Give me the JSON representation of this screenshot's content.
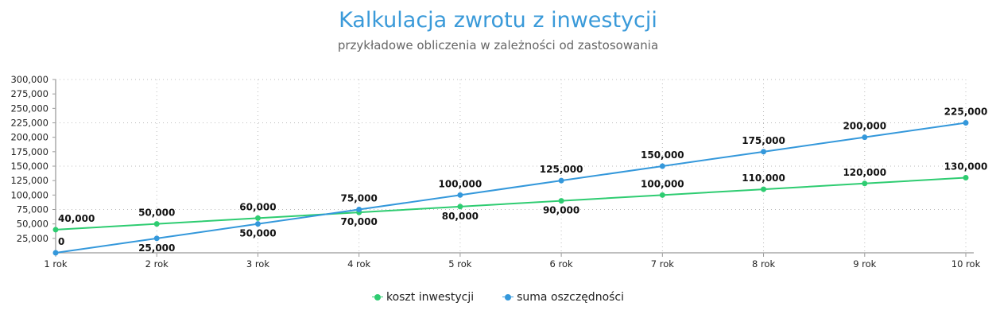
{
  "title": "Kalkulacja zwrotu z inwestycji",
  "subtitle": "przykładowe obliczenia w zależności od zastosowania",
  "chart_data": {
    "type": "line",
    "title": "Kalkulacja zwrotu z inwestycji",
    "subtitle": "przykładowe obliczenia w zależności od zastosowania",
    "categories": [
      "1 rok",
      "2 rok",
      "3 rok",
      "4 rok",
      "5 rok",
      "6 rok",
      "7 rok",
      "8 rok",
      "9 rok",
      "10 rok"
    ],
    "series": [
      {
        "name": "koszt inwestycji",
        "color": "#2ecc71",
        "values": [
          40000,
          50000,
          60000,
          70000,
          80000,
          90000,
          100000,
          110000,
          120000,
          130000
        ]
      },
      {
        "name": "suma oszczędności",
        "color": "#3498db",
        "values": [
          0,
          25000,
          50000,
          75000,
          100000,
          125000,
          150000,
          175000,
          200000,
          225000
        ]
      }
    ],
    "ylim": [
      0,
      300000
    ],
    "yticks": [
      25000,
      50000,
      75000,
      100000,
      125000,
      150000,
      175000,
      200000,
      225000,
      250000,
      275000,
      300000
    ],
    "xlabel": "",
    "ylabel": "",
    "grid": true,
    "legend": "bottom-center"
  }
}
